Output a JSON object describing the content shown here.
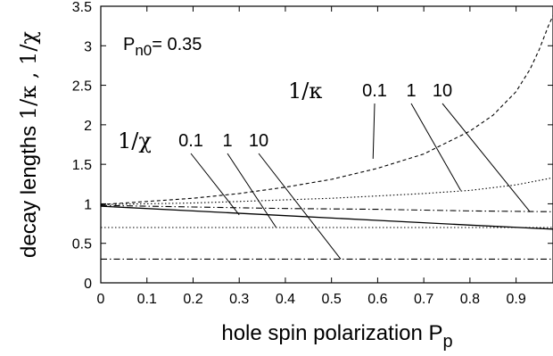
{
  "chart_data": {
    "type": "line",
    "xlabel": "hole spin polarization  P",
    "xlabel_sub": "p",
    "ylabel": "decay lengths",
    "ylabel_symbols": "1/κ , 1/χ",
    "xlim": [
      0,
      0.98
    ],
    "ylim": [
      0,
      3.5
    ],
    "xticks": [
      "0",
      "0.1",
      "0.2",
      "0.3",
      "0.4",
      "0.5",
      "0.6",
      "0.7",
      "0.8",
      "0.9"
    ],
    "yticks": [
      "0",
      "0.5",
      "1",
      "1.5",
      "2",
      "2.5",
      "3",
      "3.5"
    ],
    "parameter_label": {
      "prefix": "P",
      "sub": "n0",
      "value": "= 0.35"
    },
    "kappa_group": {
      "label": "1/κ",
      "values": [
        "0.1",
        "1",
        "10"
      ]
    },
    "chi_group": {
      "label": "1/χ",
      "values": [
        "0.1",
        "1",
        "10"
      ]
    },
    "series": [
      {
        "group": "1/κ",
        "param": "0.1",
        "style": "dashed",
        "x": [
          0,
          0.1,
          0.2,
          0.3,
          0.4,
          0.5,
          0.6,
          0.7,
          0.8,
          0.85,
          0.9,
          0.93,
          0.95,
          0.97,
          0.98
        ],
        "y": [
          0.99,
          1.03,
          1.07,
          1.13,
          1.21,
          1.31,
          1.45,
          1.63,
          1.92,
          2.12,
          2.42,
          2.7,
          2.95,
          3.25,
          3.38
        ]
      },
      {
        "group": "1/κ",
        "param": "1",
        "style": "dotted",
        "x": [
          0,
          0.1,
          0.2,
          0.3,
          0.4,
          0.5,
          0.6,
          0.7,
          0.8,
          0.9,
          0.98
        ],
        "y": [
          0.99,
          1.0,
          1.01,
          1.03,
          1.05,
          1.07,
          1.1,
          1.13,
          1.17,
          1.24,
          1.33
        ]
      },
      {
        "group": "1/κ",
        "param": "10",
        "style": "dashdot",
        "x": [
          0,
          0.2,
          0.4,
          0.6,
          0.8,
          0.98
        ],
        "y": [
          0.98,
          0.96,
          0.94,
          0.93,
          0.91,
          0.9
        ]
      },
      {
        "group": "1/χ",
        "param": "0.1",
        "style": "solid",
        "x": [
          0,
          0.2,
          0.4,
          0.6,
          0.8,
          0.98
        ],
        "y": [
          0.97,
          0.91,
          0.85,
          0.79,
          0.73,
          0.68
        ]
      },
      {
        "group": "1/χ",
        "param": "1",
        "style": "dotted",
        "x": [
          0,
          0.98
        ],
        "y": [
          0.7,
          0.7
        ]
      },
      {
        "group": "1/χ",
        "param": "10",
        "style": "dashdot",
        "x": [
          0,
          0.98
        ],
        "y": [
          0.3,
          0.3
        ]
      }
    ],
    "pointers": [
      {
        "label_group": "1/κ",
        "label_index": 0,
        "to": [
          0.59,
          1.57
        ]
      },
      {
        "label_group": "1/κ",
        "label_index": 1,
        "to": [
          0.78,
          1.17
        ]
      },
      {
        "label_group": "1/κ",
        "label_index": 2,
        "to": [
          0.93,
          0.9
        ]
      },
      {
        "label_group": "1/χ",
        "label_index": 0,
        "to": [
          0.3,
          0.86
        ]
      },
      {
        "label_group": "1/χ",
        "label_index": 1,
        "to": [
          0.38,
          0.7
        ]
      },
      {
        "label_group": "1/χ",
        "label_index": 2,
        "to": [
          0.52,
          0.3
        ]
      }
    ]
  }
}
